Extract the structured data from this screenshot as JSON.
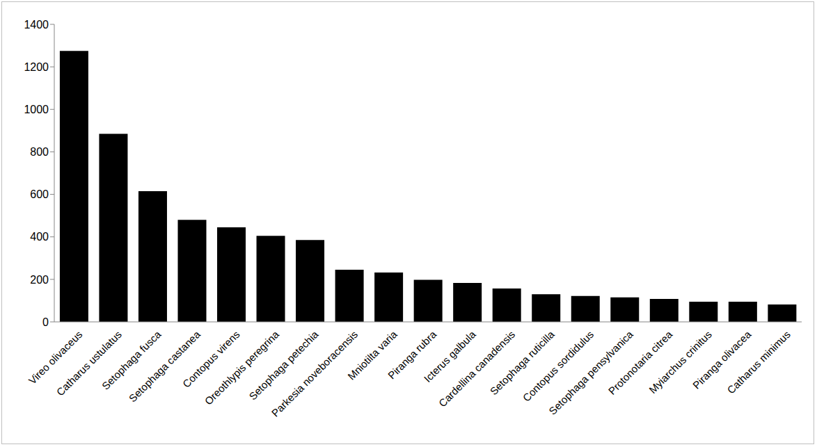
{
  "chart_data": {
    "type": "bar",
    "categories": [
      "Vireo olivaceus",
      "Catharus ustulatus",
      "Setophaga fusca",
      "Setophaga castanea",
      "Contopus virens",
      "Oreothlypis peregrina",
      "Setophaga petechia",
      "Parkesia noveboracensis",
      "Mniotilta varia",
      "Piranga rubra",
      "Icterus galbula",
      "Cardellina canadensis",
      "Setophaga ruticilla",
      "Contopus sordidulus",
      "Setophaga pensylvanica",
      "Protonotaria citrea",
      "Myiarchus crinitus",
      "Piranga olivacea",
      "Catharus minimus"
    ],
    "values": [
      1275,
      885,
      615,
      480,
      445,
      405,
      385,
      245,
      232,
      198,
      183,
      157,
      130,
      122,
      115,
      108,
      95,
      95,
      82
    ],
    "color": "#000000",
    "ylim": [
      0,
      1400
    ],
    "yticks": [
      0,
      200,
      400,
      600,
      800,
      1000,
      1200,
      1400
    ],
    "grid": false
  }
}
